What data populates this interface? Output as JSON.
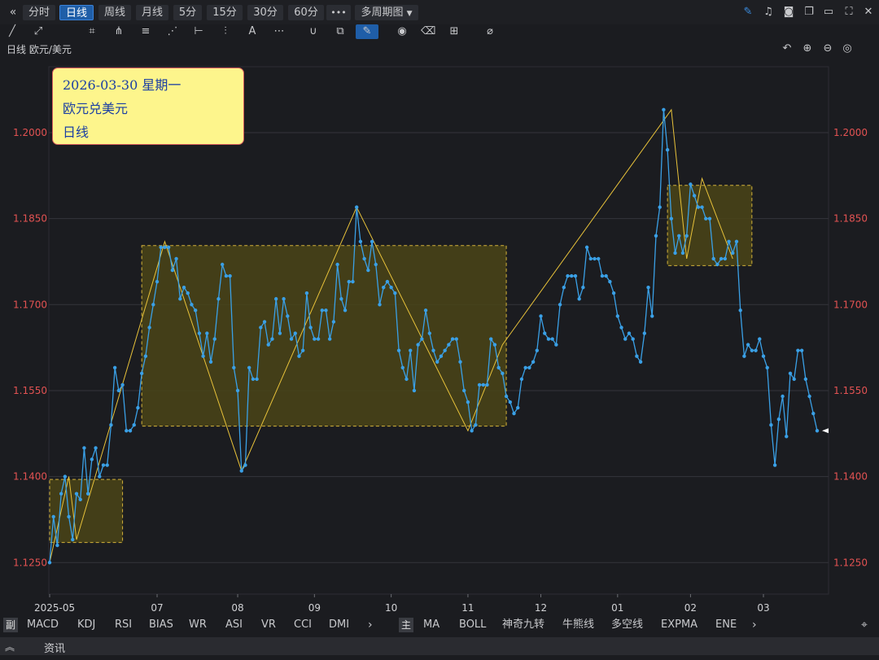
{
  "toolbar": {
    "collapse_icon": "double-chevron-left-icon",
    "periods": [
      "分时",
      "日线",
      "周线",
      "月线",
      "5分",
      "15分",
      "30分",
      "60分"
    ],
    "active_period": "日线",
    "more_label": "•••",
    "multi_period_label": "多周期图"
  },
  "drawing_tools": [
    "line-tool-icon",
    "ray-tool-icon",
    "crop-tool-icon",
    "fork-tool-icon",
    "parallel-tool-icon",
    "fan-tool-icon",
    "measure-tool-icon",
    "fib-tool-icon",
    "text-tool-icon",
    "more-tool-icon",
    "magnet-icon",
    "copy-icon",
    "pen-icon",
    "eye-icon",
    "trash-icon",
    "layout-icon",
    "ruler-icon"
  ],
  "symbol_label": "日线  欧元/美元",
  "infobox": {
    "date": "2026-03-30 星期一",
    "pair": "欧元兑美元",
    "period": "日线"
  },
  "bottom": {
    "sub_tag": "副",
    "sub_indicators": [
      "MACD",
      "KDJ",
      "RSI",
      "BIAS",
      "WR",
      "ASI",
      "VR",
      "CCI",
      "DMI"
    ],
    "main_tag": "主",
    "main_indicators": [
      "MA",
      "BOLL",
      "神奇九转",
      "牛熊线",
      "多空线",
      "EXPMA",
      "ENE"
    ],
    "news_label": "资讯"
  },
  "colors": {
    "line": "#3aa0e6",
    "zigzag": "#e8c23a",
    "box_fill": "#4a4418",
    "box_border": "#d4b23a",
    "price_labels": "#e25252"
  },
  "chart_data": {
    "type": "line",
    "y_ticks": [
      "1.2000",
      "1.1850",
      "1.1700",
      "1.1550",
      "1.1400",
      "1.1250"
    ],
    "x_ticks": [
      "2025-05",
      "07",
      "08",
      "09",
      "10",
      "11",
      "12",
      "01",
      "02",
      "03"
    ],
    "ylim": [
      1.1195,
      1.2115
    ],
    "grid": true,
    "series": [
      {
        "values": [
          1.125,
          1.133,
          1.128,
          1.137,
          1.14,
          1.133,
          1.129,
          1.137,
          1.136,
          1.145,
          1.137,
          1.143,
          1.145,
          1.14,
          1.142,
          1.142,
          1.149,
          1.159,
          1.155,
          1.156,
          1.148,
          1.148,
          1.149,
          1.152,
          1.158,
          1.161,
          1.166,
          1.17,
          1.174,
          1.18,
          1.18,
          1.18,
          1.176,
          1.178,
          1.171,
          1.173,
          1.172,
          1.17,
          1.169,
          1.165,
          1.161,
          1.165,
          1.16,
          1.164,
          1.171,
          1.177,
          1.175,
          1.175,
          1.159,
          1.155,
          1.141,
          1.142,
          1.159,
          1.157,
          1.157,
          1.166,
          1.167,
          1.163,
          1.164,
          1.171,
          1.165,
          1.171,
          1.168,
          1.164,
          1.165,
          1.161,
          1.162,
          1.172,
          1.166,
          1.164,
          1.164,
          1.169,
          1.169,
          1.164,
          1.167,
          1.177,
          1.171,
          1.169,
          1.174,
          1.174,
          1.187,
          1.181,
          1.178,
          1.176,
          1.181,
          1.177,
          1.17,
          1.173,
          1.174,
          1.173,
          1.172,
          1.162,
          1.159,
          1.157,
          1.162,
          1.155,
          1.163,
          1.164,
          1.169,
          1.165,
          1.162,
          1.16,
          1.161,
          1.162,
          1.163,
          1.164,
          1.164,
          1.16,
          1.155,
          1.153,
          1.148,
          1.149,
          1.156,
          1.156,
          1.156,
          1.164,
          1.163,
          1.159,
          1.158,
          1.154,
          1.153,
          1.151,
          1.152,
          1.157,
          1.159,
          1.159,
          1.16,
          1.162,
          1.168,
          1.165,
          1.164,
          1.164,
          1.163,
          1.17,
          1.173,
          1.175,
          1.175,
          1.175,
          1.171,
          1.173,
          1.18,
          1.178,
          1.178,
          1.178,
          1.175,
          1.175,
          1.174,
          1.172,
          1.168,
          1.166,
          1.164,
          1.165,
          1.164,
          1.161,
          1.16,
          1.165,
          1.173,
          1.168,
          1.182,
          1.187,
          1.204,
          1.197,
          1.185,
          1.179,
          1.182,
          1.179,
          1.182,
          1.191,
          1.189,
          1.187,
          1.187,
          1.185,
          1.185,
          1.178,
          1.177,
          1.178,
          1.178,
          1.181,
          1.179,
          1.181,
          1.169,
          1.161,
          1.163,
          1.162,
          1.162,
          1.164,
          1.161,
          1.159,
          1.149,
          1.142,
          1.15,
          1.154,
          1.147,
          1.158,
          1.157,
          1.162,
          1.162,
          1.157,
          1.154,
          1.151,
          1.148
        ]
      }
    ],
    "zigzag": [
      1.125,
      1.14,
      1.129,
      1.181,
      1.141,
      1.187,
      1.148,
      1.163,
      1.204,
      1.178,
      1.192,
      1.178
    ],
    "boxes": [
      {
        "from": 1.1285,
        "to": 1.1395
      },
      {
        "from": 1.1488,
        "to": 1.1803
      },
      {
        "from": 1.1768,
        "to": 1.1908
      }
    ],
    "last_value": 1.148
  }
}
